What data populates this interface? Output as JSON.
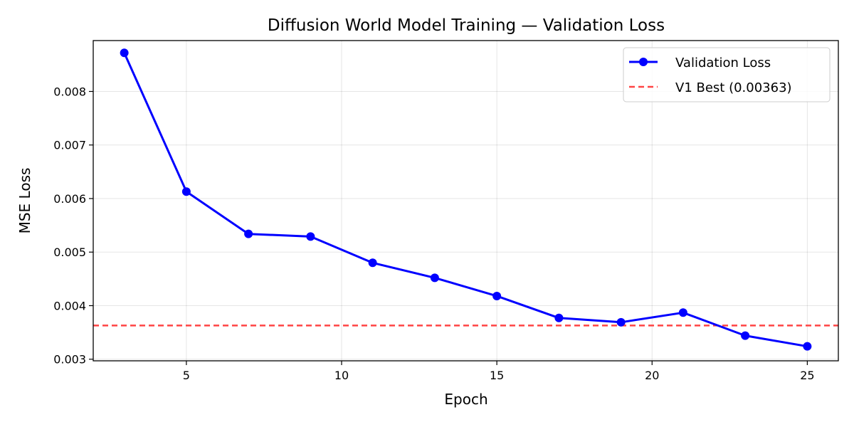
{
  "chart_data": {
    "type": "line",
    "title": "Diffusion World Model Training — Validation Loss",
    "xlabel": "Epoch",
    "ylabel": "MSE Loss",
    "xlim": [
      2,
      26
    ],
    "ylim": [
      0.00297,
      0.00895
    ],
    "x_ticks": [
      5,
      10,
      15,
      20,
      25
    ],
    "y_ticks": [
      0.003,
      0.004,
      0.005,
      0.006,
      0.007,
      0.008
    ],
    "x_tick_labels": [
      "5",
      "10",
      "15",
      "20",
      "25"
    ],
    "y_tick_labels": [
      "0.003",
      "0.004",
      "0.005",
      "0.006",
      "0.007",
      "0.008"
    ],
    "grid": true,
    "legend_position": "top-right",
    "series": [
      {
        "name": "Validation Loss",
        "color": "#0000ff",
        "marker": "circle",
        "x": [
          3,
          5,
          7,
          9,
          11,
          13,
          15,
          17,
          19,
          21,
          23,
          25
        ],
        "y": [
          0.00872,
          0.00613,
          0.00534,
          0.00529,
          0.0048,
          0.00452,
          0.00418,
          0.00377,
          0.00369,
          0.00387,
          0.00344,
          0.00324
        ]
      }
    ],
    "reference_lines": [
      {
        "name": "V1 Best (0.00363)",
        "value": 0.00363,
        "color": "#ff4444",
        "style": "dashed"
      }
    ]
  }
}
